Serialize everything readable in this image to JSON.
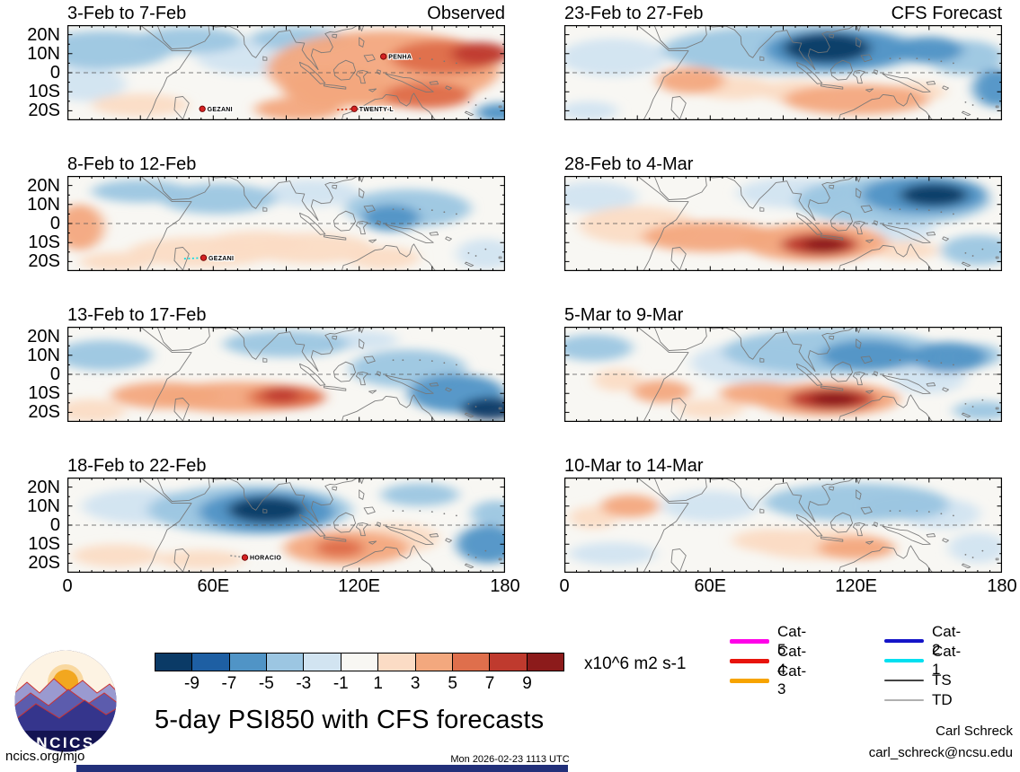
{
  "page": {
    "title_main": "5-day PSI850 with CFS forecasts",
    "units_label": "x10^6 m2 s-1",
    "footer_left": "ncics.org/mjo",
    "footer_center": "Mon 2026-02-23 1113 UTC",
    "credit_name": "Carl Schreck",
    "credit_email": "carl_schreck@ncsu.edu",
    "logo_text": "NCICS"
  },
  "chart_data": {
    "type": "heatmap",
    "title": "5-day PSI850 with CFS forecasts",
    "units": "x10^6 m2 s-1",
    "description": "Eight lat-lon map panels of 5-day mean 850-hPa streamfunction anomalies; left column observed pentads, right column CFS forecast pentads. Domain 0-180E, ~25S-25N.",
    "lon_range": [
      0,
      180
    ],
    "lat_range": [
      -25,
      25
    ],
    "x_ticks": [
      "0",
      "60E",
      "120E",
      "180"
    ],
    "y_ticks": [
      "20N",
      "10N",
      "0",
      "10S",
      "20S"
    ],
    "y_tick_lats": [
      20,
      10,
      0,
      -10,
      -20
    ],
    "grid": false,
    "colorbar": {
      "ticks": [
        -9,
        -7,
        -5,
        -3,
        -1,
        1,
        3,
        5,
        7,
        9
      ],
      "colors": [
        "#0a3a66",
        "#1e5fa3",
        "#5094c6",
        "#9cc6e2",
        "#d2e4f1",
        "#f8f7f3",
        "#fbdcc5",
        "#f3a87e",
        "#df6f4c",
        "#bf3a2e",
        "#8c1b1b"
      ]
    },
    "anomaly_format": "[lon_deg_E, lat_deg_N, rx_deg, ry_deg, value_x10^6_m2_s-1]",
    "panels": [
      {
        "title": "3-Feb to 7-Feb",
        "corner": "Observed",
        "storms": [
          {
            "name": "PENHA",
            "lon": 130,
            "lat": 8.5
          },
          {
            "name": "GEZANI",
            "lon": 55.5,
            "lat": -19
          },
          {
            "name": "TWENTY-L",
            "lon": 118,
            "lat": -19,
            "track": {
              "pts": [
                [
                  111,
                  -19.5
                ],
                [
                  118,
                  -19
                ]
              ],
              "color": "#cc2200"
            }
          }
        ],
        "anomalies": [
          [
            15,
            12,
            28,
            10,
            -4
          ],
          [
            8,
            -6,
            16,
            9,
            -2
          ],
          [
            50,
            17,
            22,
            7,
            -4
          ],
          [
            75,
            8,
            22,
            9,
            -2
          ],
          [
            95,
            18,
            20,
            6,
            -4
          ],
          [
            178,
            -21,
            10,
            5,
            -6
          ],
          [
            30,
            -17,
            20,
            6,
            2
          ],
          [
            130,
            2,
            48,
            20,
            4
          ],
          [
            155,
            8,
            22,
            9,
            6
          ],
          [
            170,
            10,
            12,
            6,
            8
          ],
          [
            148,
            -12,
            18,
            7,
            6
          ],
          [
            110,
            -8,
            22,
            10,
            4
          ],
          [
            95,
            -19,
            18,
            6,
            4
          ]
        ]
      },
      {
        "title": "8-Feb to 12-Feb",
        "corner": "",
        "storms": [
          {
            "name": "GEZANI",
            "lon": 56,
            "lat": -18,
            "track": {
              "pts": [
                [
                  48,
                  -18.5
                ],
                [
                  56,
                  -18
                ]
              ],
              "color": "#00dde5"
            }
          }
        ],
        "anomalies": [
          [
            5,
            -2,
            10,
            12,
            4
          ],
          [
            30,
            17,
            20,
            6,
            -4
          ],
          [
            62,
            13,
            24,
            8,
            -4
          ],
          [
            100,
            16,
            20,
            7,
            -2
          ],
          [
            140,
            8,
            26,
            10,
            -4
          ],
          [
            133,
            3,
            12,
            7,
            -6
          ],
          [
            55,
            -15,
            30,
            8,
            2
          ],
          [
            78,
            -10,
            20,
            6,
            2
          ],
          [
            100,
            -13,
            26,
            8,
            2
          ],
          [
            130,
            -18,
            15,
            6,
            2
          ],
          [
            20,
            -20,
            15,
            5,
            2
          ],
          [
            172,
            -16,
            12,
            8,
            -2
          ]
        ]
      },
      {
        "title": "13-Feb to 17-Feb",
        "corner": "",
        "storms": [],
        "anomalies": [
          [
            15,
            10,
            20,
            8,
            -4
          ],
          [
            90,
            16,
            26,
            7,
            -4
          ],
          [
            140,
            3,
            24,
            10,
            -4
          ],
          [
            160,
            -10,
            20,
            10,
            -6
          ],
          [
            174,
            -18,
            12,
            6,
            -10
          ],
          [
            10,
            -19,
            14,
            6,
            2
          ],
          [
            40,
            -11,
            22,
            7,
            4
          ],
          [
            70,
            -12,
            34,
            8,
            4
          ],
          [
            90,
            -12,
            16,
            6,
            6
          ],
          [
            88,
            -11,
            8,
            4,
            8
          ],
          [
            120,
            18,
            16,
            5,
            -2
          ]
        ]
      },
      {
        "title": "18-Feb to 22-Feb",
        "corner": "",
        "storms": [
          {
            "name": "HORACIO",
            "lon": 73,
            "lat": -17,
            "track": {
              "pts": [
                [
                  67,
                  -16
                ],
                [
                  73,
                  -17
                ]
              ],
              "color": "#999999"
            }
          }
        ],
        "anomalies": [
          [
            82,
            8,
            16,
            7,
            -10
          ],
          [
            82,
            7,
            28,
            11,
            -6
          ],
          [
            75,
            8,
            42,
            13,
            -4
          ],
          [
            30,
            10,
            24,
            9,
            -2
          ],
          [
            145,
            16,
            16,
            6,
            -4
          ],
          [
            173,
            -10,
            13,
            10,
            -6
          ],
          [
            176,
            6,
            10,
            7,
            -4
          ],
          [
            20,
            -16,
            18,
            6,
            2
          ],
          [
            55,
            -18,
            18,
            5,
            2
          ],
          [
            115,
            -12,
            26,
            9,
            4
          ],
          [
            112,
            -12,
            10,
            5,
            6
          ],
          [
            135,
            -7,
            18,
            8,
            2
          ]
        ]
      },
      {
        "title": "23-Feb to 27-Feb",
        "corner": "CFS Forecast",
        "storms": [],
        "anomalies": [
          [
            108,
            13,
            18,
            8,
            -10
          ],
          [
            112,
            12,
            30,
            11,
            -6
          ],
          [
            95,
            12,
            55,
            13,
            -4
          ],
          [
            150,
            12,
            14,
            7,
            -6
          ],
          [
            165,
            8,
            16,
            9,
            -4
          ],
          [
            20,
            8,
            22,
            10,
            -2
          ],
          [
            178,
            -8,
            10,
            10,
            -6
          ],
          [
            10,
            -20,
            12,
            5,
            -2
          ],
          [
            52,
            -4,
            14,
            7,
            4
          ],
          [
            70,
            -8,
            16,
            6,
            2
          ],
          [
            120,
            -14,
            30,
            8,
            4
          ],
          [
            95,
            -10,
            14,
            6,
            2
          ],
          [
            145,
            -10,
            12,
            5,
            2
          ]
        ]
      },
      {
        "title": "28-Feb to 4-Mar",
        "corner": "",
        "storms": [],
        "anomalies": [
          [
            148,
            15,
            26,
            10,
            -6
          ],
          [
            152,
            15,
            14,
            6,
            -10
          ],
          [
            135,
            12,
            40,
            13,
            -4
          ],
          [
            95,
            16,
            24,
            8,
            -2
          ],
          [
            12,
            14,
            18,
            8,
            -2
          ],
          [
            170,
            -14,
            15,
            8,
            -4
          ],
          [
            140,
            -3,
            12,
            7,
            -2
          ],
          [
            30,
            -1,
            24,
            10,
            2
          ],
          [
            60,
            -7,
            28,
            8,
            4
          ],
          [
            103,
            -10,
            30,
            10,
            4
          ],
          [
            105,
            -11,
            16,
            6,
            8
          ],
          [
            107,
            -11,
            9,
            4,
            10
          ],
          [
            140,
            -14,
            14,
            5,
            2
          ]
        ]
      },
      {
        "title": "5-Mar to 9-Mar",
        "corner": "",
        "storms": [],
        "anomalies": [
          [
            110,
            12,
            45,
            12,
            -4
          ],
          [
            125,
            10,
            20,
            8,
            -6
          ],
          [
            158,
            9,
            16,
            8,
            -6
          ],
          [
            170,
            10,
            10,
            6,
            -4
          ],
          [
            80,
            6,
            28,
            11,
            -2
          ],
          [
            12,
            14,
            16,
            7,
            -4
          ],
          [
            172,
            -19,
            12,
            5,
            -4
          ],
          [
            150,
            -2,
            15,
            8,
            -2
          ],
          [
            108,
            -13,
            30,
            9,
            4
          ],
          [
            110,
            -13,
            18,
            6,
            8
          ],
          [
            111,
            -13,
            10,
            4,
            10
          ],
          [
            80,
            -10,
            16,
            6,
            4
          ],
          [
            40,
            -9,
            12,
            6,
            4
          ],
          [
            22,
            -3,
            10,
            6,
            2
          ],
          [
            60,
            -18,
            14,
            5,
            2
          ]
        ]
      },
      {
        "title": "10-Mar to 14-Mar",
        "corner": "",
        "storms": [],
        "anomalies": [
          [
            120,
            12,
            38,
            10,
            -4
          ],
          [
            140,
            10,
            18,
            7,
            -4
          ],
          [
            155,
            6,
            16,
            8,
            -2
          ],
          [
            20,
            -15,
            18,
            6,
            -2
          ],
          [
            170,
            -12,
            12,
            8,
            -2
          ],
          [
            60,
            10,
            20,
            8,
            -2
          ],
          [
            27,
            10,
            12,
            6,
            4
          ],
          [
            12,
            4,
            10,
            6,
            2
          ],
          [
            105,
            -10,
            28,
            8,
            2
          ],
          [
            120,
            -12,
            16,
            6,
            4
          ],
          [
            85,
            -8,
            16,
            6,
            2
          ]
        ]
      }
    ],
    "legend": [
      {
        "label": "Cat-5",
        "color": "#ff00e8",
        "weight": 5,
        "column": 1
      },
      {
        "label": "Cat-4",
        "color": "#e8130c",
        "weight": 5,
        "column": 1
      },
      {
        "label": "Cat-3",
        "color": "#f7a400",
        "weight": 5,
        "column": 1
      },
      {
        "label": "Cat-2",
        "color": "#1414c8",
        "weight": 4,
        "column": 2
      },
      {
        "label": "Cat-1",
        "color": "#00e0f0",
        "weight": 4,
        "column": 2
      },
      {
        "label": "TS",
        "color": "#444444",
        "weight": 2.5,
        "column": 2
      },
      {
        "label": "TD",
        "color": "#b0b0b0",
        "weight": 1.5,
        "column": 2
      }
    ],
    "legend_position": "bottom-right"
  }
}
